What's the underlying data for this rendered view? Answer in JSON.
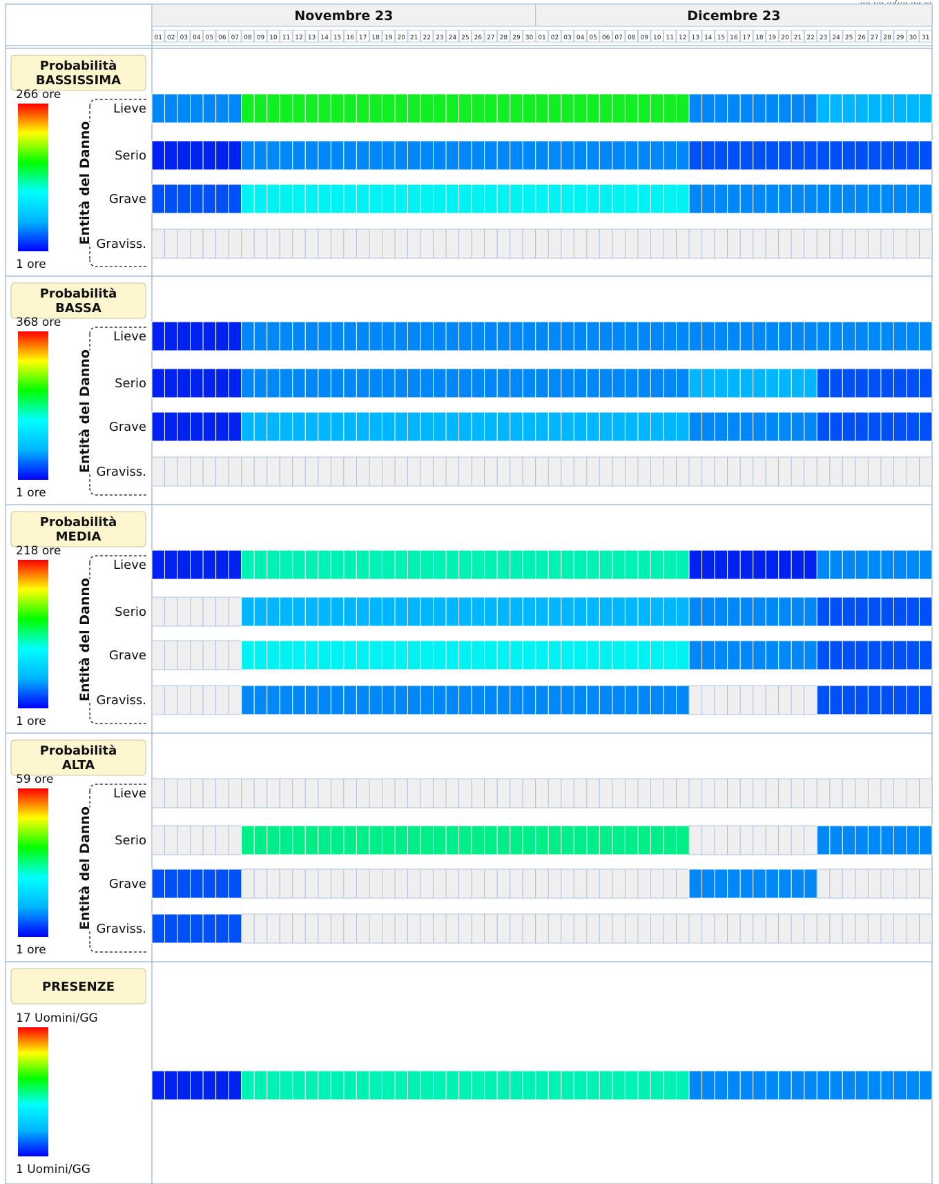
{
  "document_ref": "...; ...; .../...; ...; ...",
  "months": [
    {
      "label": "Novembre 23",
      "days": 30
    },
    {
      "label": "Dicembre 23",
      "days": 31
    }
  ],
  "legend_gradient": [
    "#0000ff",
    "#00b4ff",
    "#00ffff",
    "#00ff00",
    "#ffff00",
    "#ff0000"
  ],
  "colors": {
    "inactive": "#efefef",
    "deep_blue": "#0022f0",
    "royal_blue": "#0050f8",
    "mid_blue": "#0088f8",
    "sky_blue": "#00b6ff",
    "cyan": "#00f2f2",
    "aqua": "#00f2b2",
    "spring_green": "#00ee88",
    "green": "#11ee22"
  },
  "chart_data": {
    "type": "heatmap",
    "x": {
      "months": [
        "Novembre 23",
        "Dicembre 23"
      ],
      "days_per_month": [
        30,
        31
      ]
    },
    "panels": [
      {
        "label_line1": "Probabilità",
        "label_line2": "BASSISSIMA",
        "legend_max": "266 ore",
        "legend_min": "1 ore",
        "axis_label": "Entità del Danno",
        "rows": [
          {
            "name": "Lieve",
            "segments": [
              {
                "start": 1,
                "end": 7,
                "color": "mid_blue"
              },
              {
                "start": 8,
                "end": 42,
                "color": "green"
              },
              {
                "start": 43,
                "end": 52,
                "color": "mid_blue"
              },
              {
                "start": 53,
                "end": 61,
                "color": "sky_blue"
              }
            ]
          },
          {
            "name": "Serio",
            "segments": [
              {
                "start": 1,
                "end": 7,
                "color": "deep_blue"
              },
              {
                "start": 8,
                "end": 42,
                "color": "mid_blue"
              },
              {
                "start": 43,
                "end": 61,
                "color": "royal_blue"
              }
            ]
          },
          {
            "name": "Grave",
            "segments": [
              {
                "start": 1,
                "end": 7,
                "color": "royal_blue"
              },
              {
                "start": 8,
                "end": 42,
                "color": "cyan"
              },
              {
                "start": 43,
                "end": 61,
                "color": "mid_blue"
              }
            ]
          },
          {
            "name": "Graviss.",
            "segments": []
          }
        ]
      },
      {
        "label_line1": "Probabilità",
        "label_line2": "BASSA",
        "legend_max": "368 ore",
        "legend_min": "1 ore",
        "axis_label": "Entità del Danno",
        "rows": [
          {
            "name": "Lieve",
            "segments": [
              {
                "start": 1,
                "end": 7,
                "color": "deep_blue"
              },
              {
                "start": 8,
                "end": 61,
                "color": "mid_blue"
              }
            ]
          },
          {
            "name": "Serio",
            "segments": [
              {
                "start": 1,
                "end": 7,
                "color": "deep_blue"
              },
              {
                "start": 8,
                "end": 42,
                "color": "mid_blue"
              },
              {
                "start": 43,
                "end": 52,
                "color": "sky_blue"
              },
              {
                "start": 53,
                "end": 61,
                "color": "royal_blue"
              }
            ]
          },
          {
            "name": "Grave",
            "segments": [
              {
                "start": 1,
                "end": 7,
                "color": "deep_blue"
              },
              {
                "start": 8,
                "end": 42,
                "color": "sky_blue"
              },
              {
                "start": 43,
                "end": 52,
                "color": "mid_blue"
              },
              {
                "start": 53,
                "end": 61,
                "color": "royal_blue"
              }
            ]
          },
          {
            "name": "Graviss.",
            "segments": []
          }
        ]
      },
      {
        "label_line1": "Probabilità",
        "label_line2": "MEDIA",
        "legend_max": "218 ore",
        "legend_min": "1 ore",
        "axis_label": "Entità del Danno",
        "rows": [
          {
            "name": "Lieve",
            "segments": [
              {
                "start": 1,
                "end": 7,
                "color": "deep_blue"
              },
              {
                "start": 8,
                "end": 42,
                "color": "aqua"
              },
              {
                "start": 43,
                "end": 52,
                "color": "deep_blue"
              },
              {
                "start": 53,
                "end": 61,
                "color": "mid_blue"
              }
            ]
          },
          {
            "name": "Serio",
            "segments": [
              {
                "start": 8,
                "end": 42,
                "color": "sky_blue"
              },
              {
                "start": 43,
                "end": 52,
                "color": "mid_blue"
              },
              {
                "start": 53,
                "end": 61,
                "color": "royal_blue"
              }
            ]
          },
          {
            "name": "Grave",
            "segments": [
              {
                "start": 8,
                "end": 42,
                "color": "cyan"
              },
              {
                "start": 43,
                "end": 52,
                "color": "mid_blue"
              },
              {
                "start": 53,
                "end": 61,
                "color": "royal_blue"
              }
            ]
          },
          {
            "name": "Graviss.",
            "segments": [
              {
                "start": 8,
                "end": 42,
                "color": "mid_blue"
              },
              {
                "start": 53,
                "end": 61,
                "color": "royal_blue"
              }
            ]
          }
        ]
      },
      {
        "label_line1": "Probabilità",
        "label_line2": "ALTA",
        "legend_max": "59 ore",
        "legend_min": "1 ore",
        "axis_label": "Entità del Danno",
        "rows": [
          {
            "name": "Lieve",
            "segments": []
          },
          {
            "name": "Serio",
            "segments": [
              {
                "start": 8,
                "end": 42,
                "color": "spring_green"
              },
              {
                "start": 53,
                "end": 61,
                "color": "mid_blue"
              }
            ]
          },
          {
            "name": "Grave",
            "segments": [
              {
                "start": 1,
                "end": 7,
                "color": "royal_blue"
              },
              {
                "start": 43,
                "end": 52,
                "color": "mid_blue"
              }
            ]
          },
          {
            "name": "Graviss.",
            "segments": [
              {
                "start": 1,
                "end": 7,
                "color": "royal_blue"
              }
            ]
          }
        ]
      },
      {
        "label_line1": "PRESENZE",
        "label_line2": "",
        "legend_max": "17 Uomini/GG",
        "legend_min": "1 Uomini/GG",
        "axis_label": "",
        "rows": [
          {
            "name": "",
            "segments": [
              {
                "start": 1,
                "end": 7,
                "color": "deep_blue"
              },
              {
                "start": 8,
                "end": 42,
                "color": "aqua"
              },
              {
                "start": 43,
                "end": 61,
                "color": "mid_blue"
              }
            ]
          }
        ]
      }
    ]
  }
}
